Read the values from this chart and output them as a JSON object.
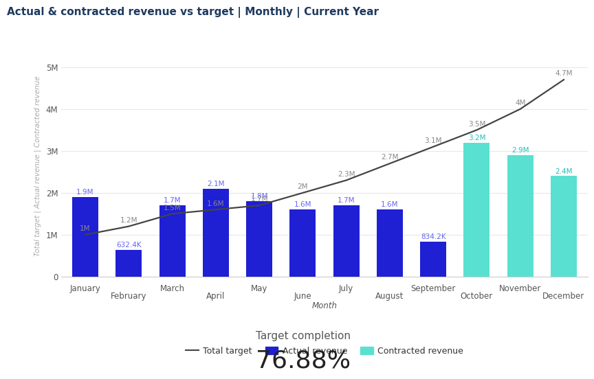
{
  "title": "Actual & contracted revenue vs target | Monthly | Current Year",
  "xlabel": "Month",
  "ylabel": "Total target | Actual revenue | Contracted revenue",
  "months": [
    "January",
    "February",
    "March",
    "April",
    "May",
    "June",
    "July",
    "August",
    "September",
    "October",
    "November",
    "December"
  ],
  "actual_revenue": [
    1900000,
    632400,
    1700000,
    2100000,
    1800000,
    1600000,
    1700000,
    1600000,
    834200,
    null,
    null,
    null
  ],
  "contracted_revenue": [
    null,
    null,
    null,
    null,
    null,
    null,
    null,
    null,
    null,
    3200000,
    2900000,
    2400000
  ],
  "actual_labels": [
    "1.9M",
    "632.4K",
    "1.7M",
    "2.1M",
    "1.8M",
    "1.6M",
    "1.7M",
    "1.6M",
    "834.2K",
    null,
    null,
    null
  ],
  "contracted_labels": [
    null,
    null,
    null,
    null,
    null,
    null,
    null,
    null,
    null,
    "3.2M",
    "2.9M",
    "2.4M"
  ],
  "target_line": [
    1000000,
    1200000,
    1500000,
    1600000,
    1700000,
    2000000,
    2300000,
    2700000,
    3100000,
    3500000,
    4000000,
    4700000
  ],
  "target_labels": [
    "1M",
    "1.2M",
    "1.5M",
    "1.6M",
    "1.7M",
    "2M",
    "2.3M",
    "2.7M",
    "3.1M",
    "3.5M",
    "4M",
    "4.7M"
  ],
  "actual_bar_color": "#1f1fd4",
  "contracted_bar_color": "#5ae0d0",
  "target_line_color": "#444444",
  "label_color_actual": "#6666ee",
  "label_color_contracted": "#20c0b8",
  "label_color_target": "#888888",
  "title_color": "#1e3a5f",
  "background_color": "#ffffff",
  "ylim": [
    0,
    5300000
  ],
  "yticks": [
    0,
    1000000,
    2000000,
    3000000,
    4000000,
    5000000
  ],
  "ytick_labels": [
    "0",
    "1M",
    "2M",
    "3M",
    "4M",
    "5M"
  ],
  "target_completion_label": "Target completion",
  "target_completion_value": "76.88%",
  "figsize": [
    8.8,
    5.39
  ],
  "dpi": 100
}
